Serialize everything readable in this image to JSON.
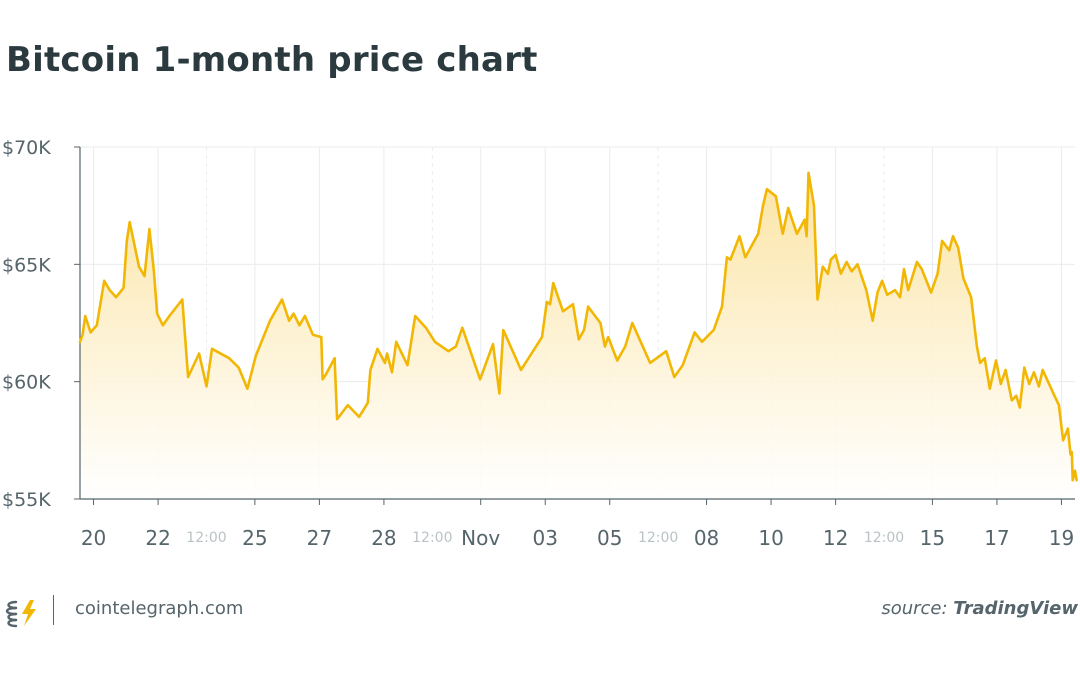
{
  "title": "Bitcoin 1-month price chart",
  "footer": {
    "site": "cointelegraph.com",
    "source_prefix": "source: ",
    "source_name": "TradingView",
    "logo_icon": "cointelegraph-logo-icon"
  },
  "colors": {
    "line": "#f2b705",
    "fill_top": "#fbe3a0",
    "axis_text": "#55656b",
    "minor_tick_text": "#b9c3c6",
    "grid": "#e9ecee",
    "title": "#2b3a3f"
  },
  "chart_data": {
    "type": "area",
    "title": "Bitcoin 1-month price chart",
    "xlabel": "",
    "ylabel": "",
    "ylim": [
      55000,
      70000
    ],
    "y_ticks": [
      {
        "value": 70000,
        "label": "$70K"
      },
      {
        "value": 65000,
        "label": "$65K"
      },
      {
        "value": 60000,
        "label": "$60K"
      },
      {
        "value": 55000,
        "label": "$55K"
      }
    ],
    "x_unit": "days since Oct 19 00:00",
    "xlim": [
      0.58,
      31.42
    ],
    "x_ticks": [
      {
        "x": 1,
        "label": "20",
        "minor": false
      },
      {
        "x": 3,
        "label": "22",
        "minor": false
      },
      {
        "x": 4.5,
        "label": "12:00",
        "minor": true
      },
      {
        "x": 6,
        "label": "25",
        "minor": false
      },
      {
        "x": 8,
        "label": "27",
        "minor": false
      },
      {
        "x": 10,
        "label": "28",
        "minor": false
      },
      {
        "x": 11.5,
        "label": "12:00",
        "minor": true
      },
      {
        "x": 13,
        "label": "Nov",
        "minor": false
      },
      {
        "x": 15,
        "label": "03",
        "minor": false
      },
      {
        "x": 17,
        "label": "05",
        "minor": false
      },
      {
        "x": 18.5,
        "label": "12:00",
        "minor": true
      },
      {
        "x": 20,
        "label": "08",
        "minor": false
      },
      {
        "x": 22,
        "label": "10",
        "minor": false
      },
      {
        "x": 24,
        "label": "12",
        "minor": false
      },
      {
        "x": 25.5,
        "label": "12:00",
        "minor": true
      },
      {
        "x": 27,
        "label": "15",
        "minor": false
      },
      {
        "x": 29,
        "label": "17",
        "minor": false
      },
      {
        "x": 31,
        "label": "19",
        "minor": false
      }
    ],
    "series": [
      {
        "values": [
          [
            0.58,
            61700
          ],
          [
            0.66,
            62000
          ],
          [
            0.74,
            62800
          ],
          [
            0.91,
            62100
          ],
          [
            1.1,
            62400
          ],
          [
            1.33,
            64300
          ],
          [
            1.5,
            63900
          ],
          [
            1.7,
            63600
          ],
          [
            1.93,
            64000
          ],
          [
            2.03,
            66000
          ],
          [
            2.12,
            66800
          ],
          [
            2.41,
            64900
          ],
          [
            2.58,
            64500
          ],
          [
            2.73,
            66500
          ],
          [
            2.87,
            64700
          ],
          [
            2.97,
            62900
          ],
          [
            3.15,
            62400
          ],
          [
            3.35,
            62800
          ],
          [
            3.75,
            63500
          ],
          [
            3.93,
            60200
          ],
          [
            4.27,
            61200
          ],
          [
            4.5,
            59800
          ],
          [
            4.67,
            61400
          ],
          [
            5.2,
            61000
          ],
          [
            5.5,
            60600
          ],
          [
            5.77,
            59700
          ],
          [
            6.03,
            61100
          ],
          [
            6.47,
            62600
          ],
          [
            6.84,
            63500
          ],
          [
            7.06,
            62600
          ],
          [
            7.2,
            62900
          ],
          [
            7.38,
            62400
          ],
          [
            7.55,
            62800
          ],
          [
            7.8,
            62000
          ],
          [
            8.06,
            61900
          ],
          [
            8.1,
            60100
          ],
          [
            8.2,
            60300
          ],
          [
            8.47,
            61000
          ],
          [
            8.55,
            58400
          ],
          [
            8.88,
            59000
          ],
          [
            9.23,
            58500
          ],
          [
            9.5,
            59100
          ],
          [
            9.58,
            60500
          ],
          [
            9.8,
            61400
          ],
          [
            10.03,
            60800
          ],
          [
            10.1,
            61200
          ],
          [
            10.25,
            60400
          ],
          [
            10.38,
            61700
          ],
          [
            10.73,
            60700
          ],
          [
            10.97,
            62800
          ],
          [
            11.3,
            62300
          ],
          [
            11.58,
            61700
          ],
          [
            12.0,
            61300
          ],
          [
            12.23,
            61500
          ],
          [
            12.43,
            62300
          ],
          [
            12.98,
            60100
          ],
          [
            13.38,
            61600
          ],
          [
            13.58,
            59500
          ],
          [
            13.7,
            62200
          ],
          [
            14.25,
            60500
          ],
          [
            14.9,
            61900
          ],
          [
            15.05,
            63400
          ],
          [
            15.15,
            63300
          ],
          [
            15.25,
            64200
          ],
          [
            15.55,
            63000
          ],
          [
            15.86,
            63300
          ],
          [
            16.04,
            61800
          ],
          [
            16.2,
            62200
          ],
          [
            16.33,
            63200
          ],
          [
            16.71,
            62500
          ],
          [
            16.85,
            61500
          ],
          [
            16.95,
            61900
          ],
          [
            17.23,
            60900
          ],
          [
            17.48,
            61500
          ],
          [
            17.7,
            62500
          ],
          [
            18.25,
            60800
          ],
          [
            18.75,
            61300
          ],
          [
            19.0,
            60200
          ],
          [
            19.26,
            60700
          ],
          [
            19.63,
            62100
          ],
          [
            19.86,
            61700
          ],
          [
            20.22,
            62200
          ],
          [
            20.48,
            63200
          ],
          [
            20.63,
            65300
          ],
          [
            20.74,
            65200
          ],
          [
            21.02,
            66200
          ],
          [
            21.2,
            65300
          ],
          [
            21.6,
            66300
          ],
          [
            21.75,
            67500
          ],
          [
            21.87,
            68200
          ],
          [
            22.15,
            67900
          ],
          [
            22.36,
            66300
          ],
          [
            22.53,
            67400
          ],
          [
            22.8,
            66300
          ],
          [
            23.04,
            66900
          ],
          [
            23.1,
            66200
          ],
          [
            23.16,
            68900
          ],
          [
            23.33,
            67500
          ],
          [
            23.44,
            63500
          ],
          [
            23.6,
            64900
          ],
          [
            23.76,
            64600
          ],
          [
            23.85,
            65200
          ],
          [
            24.0,
            65400
          ],
          [
            24.16,
            64600
          ],
          [
            24.34,
            65100
          ],
          [
            24.5,
            64700
          ],
          [
            24.68,
            65000
          ],
          [
            24.95,
            63900
          ],
          [
            25.15,
            62600
          ],
          [
            25.3,
            63800
          ],
          [
            25.44,
            64300
          ],
          [
            25.6,
            63700
          ],
          [
            25.84,
            63900
          ],
          [
            26.0,
            63600
          ],
          [
            26.12,
            64800
          ],
          [
            26.25,
            63900
          ],
          [
            26.52,
            65100
          ],
          [
            26.67,
            64800
          ],
          [
            26.96,
            63800
          ],
          [
            27.16,
            64600
          ],
          [
            27.3,
            66000
          ],
          [
            27.52,
            65600
          ],
          [
            27.64,
            66200
          ],
          [
            27.8,
            65700
          ],
          [
            27.96,
            64400
          ],
          [
            28.2,
            63600
          ],
          [
            28.38,
            61500
          ],
          [
            28.48,
            60800
          ],
          [
            28.62,
            61000
          ],
          [
            28.78,
            59700
          ],
          [
            28.97,
            60900
          ],
          [
            29.12,
            59900
          ],
          [
            29.27,
            60500
          ],
          [
            29.46,
            59200
          ],
          [
            29.6,
            59400
          ],
          [
            29.71,
            58900
          ],
          [
            29.85,
            60600
          ],
          [
            30.0,
            59900
          ],
          [
            30.15,
            60400
          ],
          [
            30.3,
            59800
          ],
          [
            30.42,
            60500
          ],
          [
            30.75,
            59500
          ],
          [
            30.92,
            59000
          ],
          [
            31.05,
            57500
          ],
          [
            31.2,
            58000
          ],
          [
            31.28,
            56900
          ],
          [
            31.32,
            57000
          ],
          [
            31.35,
            55800
          ],
          [
            31.42,
            56200
          ],
          [
            31.47,
            55800
          ]
        ]
      }
    ]
  }
}
